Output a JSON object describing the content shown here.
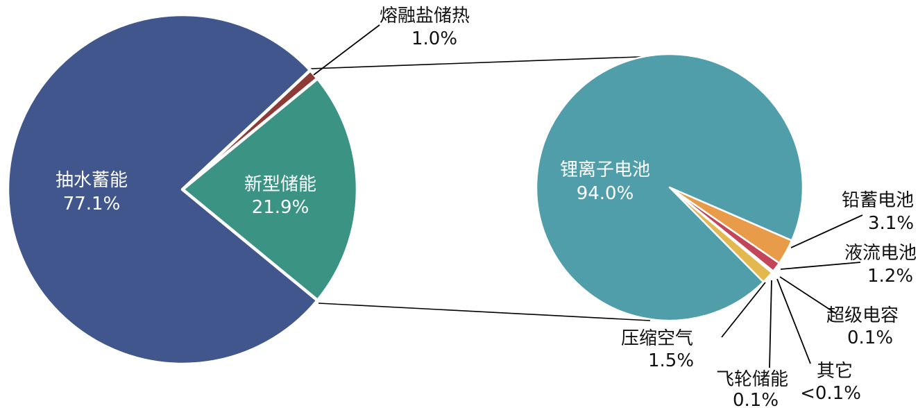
{
  "figure": {
    "type": "pie-of-pie",
    "background": "#ffffff"
  },
  "chart_data": [
    {
      "type": "pie",
      "name": "primary-energy-storage-share",
      "title": "",
      "unit": "%",
      "start_angle_deg": 46.98,
      "slices": [
        {
          "key": "molten-salt-thermal",
          "label": "熔融盐储热",
          "value": 1.0,
          "display": "1.0%",
          "color": "#8E3A37"
        },
        {
          "key": "new-type-storage",
          "label": "新型储能",
          "value": 21.9,
          "display": "21.9%",
          "color": "#3A9383"
        },
        {
          "key": "pumped-hydro",
          "label": "抽水蓄能",
          "value": 77.1,
          "display": "77.1%",
          "color": "#40568C"
        }
      ]
    },
    {
      "type": "pie",
      "name": "new-type-storage-breakdown",
      "title": "",
      "unit": "%",
      "start_angle_deg": 113.5,
      "slices": [
        {
          "key": "lead-acid-battery",
          "label": "铅蓄电池",
          "value": 3.1,
          "display": "3.1%",
          "color": "#E89B49"
        },
        {
          "key": "flow-battery",
          "label": "液流电池",
          "value": 1.2,
          "display": "1.2%",
          "color": "#C2455A"
        },
        {
          "key": "supercapacitor",
          "label": "超级电容",
          "value": 0.1,
          "display": "0.1%",
          "color": "#7E57A0"
        },
        {
          "key": "other",
          "label": "其它",
          "value": 0.05,
          "display": "<0.1%",
          "color": "#8FA63F"
        },
        {
          "key": "flywheel-storage",
          "label": "飞轮储能",
          "value": 0.1,
          "display": "0.1%",
          "color": "#5B8FBF"
        },
        {
          "key": "compressed-air",
          "label": "压缩空气",
          "value": 1.5,
          "display": "1.5%",
          "color": "#E3B84E"
        },
        {
          "key": "li-ion-battery",
          "label": "锂离子电池",
          "value": 94.0,
          "display": "94.0%",
          "color": "#4F9EA9"
        }
      ]
    }
  ]
}
